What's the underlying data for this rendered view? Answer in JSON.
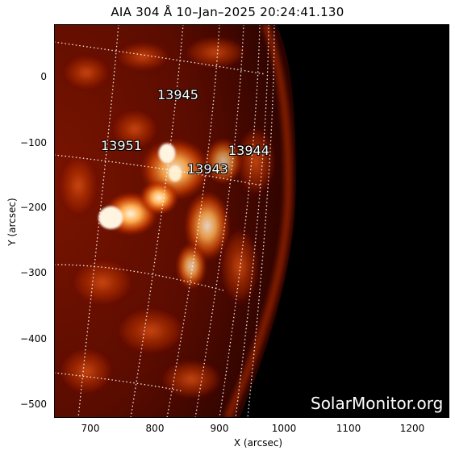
{
  "title": "AIA 304 Å 10–Jan–2025 20:24:41.130",
  "watermark": "SolarMonitor.org",
  "xlabel": "X (arcsec)",
  "ylabel": "Y (arcsec)",
  "xticks": [
    "700",
    "800",
    "900",
    "1000",
    "1100",
    "1200"
  ],
  "yticks": [
    "0",
    "−100",
    "−200",
    "−300",
    "−400",
    "−500"
  ],
  "regions": [
    "13945",
    "13951",
    "13944",
    "13943"
  ],
  "colors": {
    "disk_dim": "#3a0400",
    "disk_mid": "#9a1e00",
    "bright": "#ff8a2a",
    "hot": "#fff2d8",
    "grid": "#ffffff"
  }
}
